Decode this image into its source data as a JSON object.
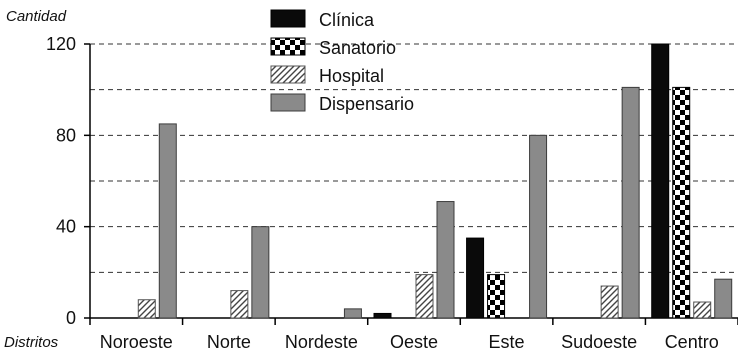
{
  "chart_data": {
    "type": "bar",
    "ylabel": "Cantidad",
    "xlabel": "Distritos",
    "ylim": [
      0,
      120
    ],
    "yticks": [
      0,
      40,
      80,
      120
    ],
    "grid_lines": [
      20,
      40,
      60,
      80,
      100,
      120
    ],
    "grid": "horizontal-dashed",
    "legend_position": "top-center",
    "categories": [
      "Noroeste",
      "Norte",
      "Nordeste",
      "Oeste",
      "Este",
      "Sudoeste",
      "Centro"
    ],
    "series": [
      {
        "name": "Clínica",
        "pattern": "solid-black",
        "values": [
          0,
          0,
          0,
          2,
          35,
          0,
          120
        ]
      },
      {
        "name": "Sanatorio",
        "pattern": "checkerboard",
        "values": [
          0,
          0,
          0,
          0,
          19,
          0,
          101
        ]
      },
      {
        "name": "Hospital",
        "pattern": "diagonal-hatch",
        "values": [
          8,
          12,
          0,
          19,
          0,
          14,
          7
        ]
      },
      {
        "name": "Dispensario",
        "pattern": "solid-gray",
        "values": [
          85,
          40,
          4,
          51,
          80,
          101,
          17
        ]
      }
    ]
  }
}
